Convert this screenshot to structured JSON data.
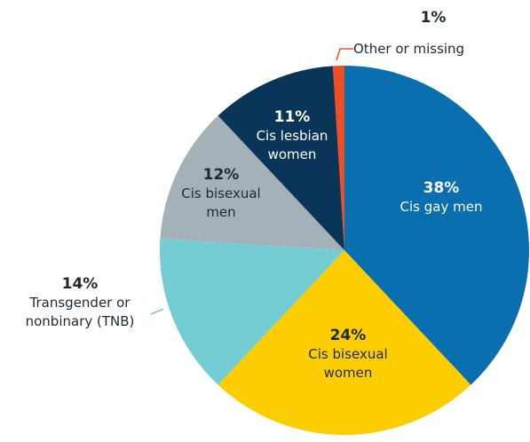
{
  "chart_data": {
    "type": "pie",
    "categories": [
      "Cis gay men",
      "Cis bisexual women",
      "Transgender or nonbinary (TNB)",
      "Cis bisexual men",
      "Cis lesbian women",
      "Other or missing"
    ],
    "values": [
      38,
      24,
      14,
      12,
      11,
      1
    ],
    "value_labels": [
      "38%",
      "24%",
      "14%",
      "12%",
      "11%",
      "1%"
    ],
    "colors": [
      "#0a6fae",
      "#fccd00",
      "#75cdd4",
      "#a5b1b9",
      "#0b3558",
      "#f04e23"
    ]
  }
}
